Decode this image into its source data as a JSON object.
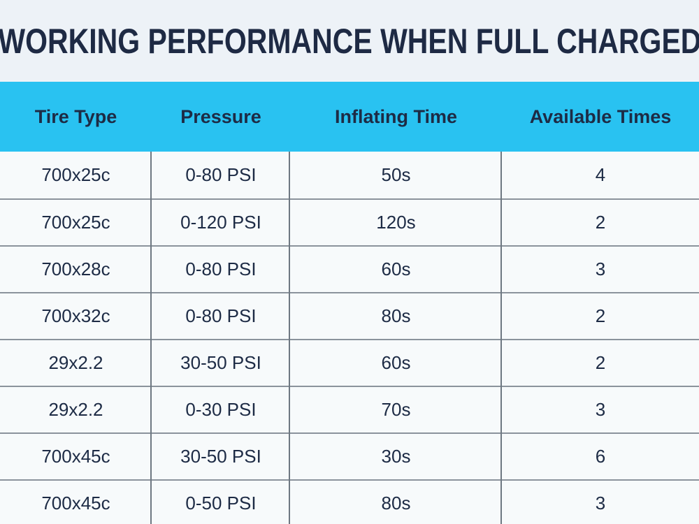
{
  "page": {
    "title": "WORKING PERFORMANCE WHEN FULL CHARGED"
  },
  "colors": {
    "page_background": "#edf2f7",
    "header_background": "#29c2f1",
    "row_background": "#f7fafb",
    "text_navy": "#1d2b45",
    "horizontal_line": "#8b939c",
    "vertical_line": "#6e7882"
  },
  "chart_data": {
    "type": "table",
    "title": "WORKING PERFORMANCE WHEN FULL CHARGED",
    "columns": [
      "Tire Type",
      "Pressure",
      "Inflating Time",
      "Available Times"
    ],
    "rows": [
      [
        "700x25c",
        "0-80 PSI",
        "50s",
        "4"
      ],
      [
        "700x25c",
        "0-120 PSI",
        "120s",
        "2"
      ],
      [
        "700x28c",
        "0-80 PSI",
        "60s",
        "3"
      ],
      [
        "700x32c",
        "0-80 PSI",
        "80s",
        "2"
      ],
      [
        "29x2.2",
        "30-50 PSI",
        "60s",
        "2"
      ],
      [
        "29x2.2",
        "0-30 PSI",
        "70s",
        "3"
      ],
      [
        "700x45c",
        "30-50 PSI",
        "30s",
        "6"
      ],
      [
        "700x45c",
        "0-50 PSI",
        "80s",
        "3"
      ]
    ]
  }
}
